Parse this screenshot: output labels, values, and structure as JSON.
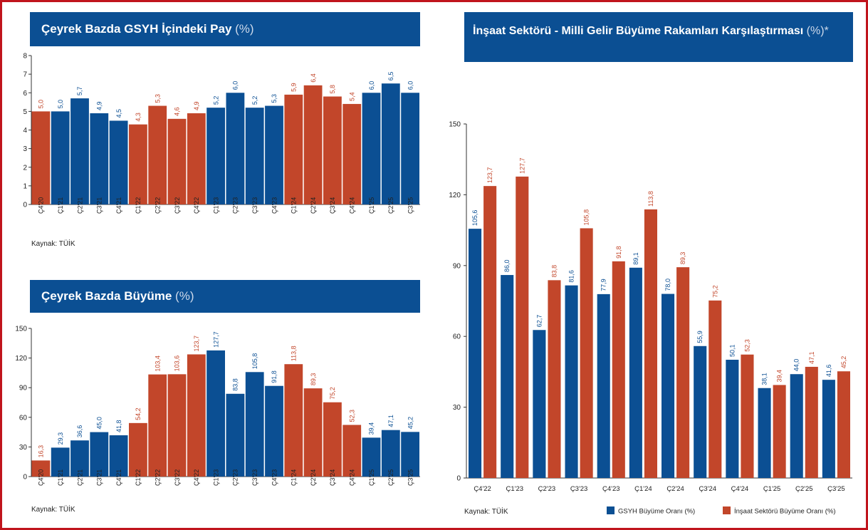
{
  "headers": {
    "chart1_title": "Çeyrek Bazda GSYH İçindeki Pay",
    "chart1_unit": "(%)",
    "chart2_title": "Çeyrek Bazda Büyüme",
    "chart2_unit": "(%)",
    "chart3_title": "İnşaat Sektörü - Milli Gelir Büyüme Rakamları Karşılaştırması",
    "chart3_unit": "(%)*"
  },
  "colors": {
    "blue": "#0b4f93",
    "orange": "#c2462a",
    "red_frame": "#c0141c"
  },
  "chart_data": [
    {
      "id": "share",
      "type": "bar",
      "title": "Çeyrek Bazda GSYH İçindeki Pay",
      "unit": "(%)",
      "source": "Kaynak: TÜİK",
      "ylim": [
        0,
        8
      ],
      "yticks": [
        0,
        1,
        2,
        3,
        4,
        5,
        6,
        7,
        8
      ],
      "categories": [
        "Ç4'20",
        "Ç1'21",
        "Ç2'21",
        "Ç3'21",
        "Ç4'21",
        "Ç1'22",
        "Ç2'22",
        "Ç3'22",
        "Ç4'22",
        "Ç1'23",
        "Ç2'23",
        "Ç3'23",
        "Ç4'23",
        "Ç1'24",
        "Ç2'24",
        "Ç3'24",
        "Ç4'24",
        "Ç1'25",
        "Ç2'25",
        "Ç3'25"
      ],
      "values": [
        5.0,
        5.0,
        5.7,
        4.9,
        4.5,
        4.3,
        5.3,
        4.6,
        4.9,
        5.2,
        6.0,
        5.2,
        5.3,
        5.9,
        6.4,
        5.8,
        5.4,
        6.0,
        6.5,
        6.0
      ],
      "labels": [
        "5,0",
        "5,0",
        "5,7",
        "4,9",
        "4,5",
        "4,3",
        "5,3",
        "4,6",
        "4,9",
        "5,2",
        "6,0",
        "5,2",
        "5,3",
        "5,9",
        "6,4",
        "5,8",
        "5,4",
        "6,0",
        "6,5",
        "6,0"
      ],
      "colors": [
        "orange",
        "blue",
        "blue",
        "blue",
        "blue",
        "orange",
        "orange",
        "orange",
        "orange",
        "blue",
        "blue",
        "blue",
        "blue",
        "orange",
        "orange",
        "orange",
        "orange",
        "blue",
        "blue",
        "blue"
      ]
    },
    {
      "id": "growth",
      "type": "bar",
      "title": "Çeyrek Bazda Büyüme",
      "unit": "(%)",
      "source": "Kaynak: TÜİK",
      "ylim": [
        0,
        150
      ],
      "yticks": [
        0,
        30,
        60,
        90,
        120,
        150
      ],
      "categories": [
        "Ç4'20",
        "Ç1'21",
        "Ç2'21",
        "Ç3'21",
        "Ç4'21",
        "Ç1'22",
        "Ç2'22",
        "Ç3'22",
        "Ç4'22",
        "Ç1'23",
        "Ç2'23",
        "Ç3'23",
        "Ç4'23",
        "Ç1'24",
        "Ç2'24",
        "Ç3'24",
        "Ç4'24",
        "Ç1'25",
        "Ç2'25",
        "Ç3'25"
      ],
      "values": [
        16.3,
        29.3,
        36.6,
        45.0,
        41.8,
        54.2,
        103.4,
        103.6,
        123.7,
        127.7,
        83.8,
        105.8,
        91.8,
        113.8,
        89.3,
        75.2,
        52.3,
        39.4,
        47.1,
        45.2
      ],
      "labels": [
        "16,3",
        "29,3",
        "36,6",
        "45,0",
        "41,8",
        "54,2",
        "103,4",
        "103,6",
        "123,7",
        "127,7",
        "83,8",
        "105,8",
        "91,8",
        "113,8",
        "89,3",
        "75,2",
        "52,3",
        "39,4",
        "47,1",
        "45,2"
      ],
      "colors": [
        "orange",
        "blue",
        "blue",
        "blue",
        "blue",
        "orange",
        "orange",
        "orange",
        "orange",
        "blue",
        "blue",
        "blue",
        "blue",
        "orange",
        "orange",
        "orange",
        "orange",
        "blue",
        "blue",
        "blue"
      ]
    },
    {
      "id": "comparison",
      "type": "bar",
      "title": "İnşaat Sektörü - Milli Gelir Büyüme Rakamları Karşılaştırması",
      "unit": "(%)*",
      "source": "Kaynak: TÜİK",
      "ylim": [
        0,
        150
      ],
      "yticks": [
        0,
        30,
        60,
        90,
        120,
        150
      ],
      "categories": [
        "Ç4'22",
        "Ç1'23",
        "Ç2'23",
        "Ç3'23",
        "Ç4'23",
        "Ç1'24",
        "Ç2'24",
        "Ç3'24",
        "Ç4'24",
        "Ç1'25",
        "Ç2'25",
        "Ç3'25"
      ],
      "series": [
        {
          "name": "GSYH Büyüme Oranı (%)",
          "color": "blue",
          "values": [
            105.6,
            86.0,
            62.7,
            81.6,
            77.9,
            89.1,
            78.0,
            55.9,
            50.1,
            38.1,
            44.0,
            41.6
          ],
          "labels": [
            "105,6",
            "86,0",
            "62,7",
            "81,6",
            "77,9",
            "89,1",
            "78,0",
            "55,9",
            "50,1",
            "38,1",
            "44,0",
            "41,6"
          ]
        },
        {
          "name": "İnşaat Sektörü Büyüme Oranı (%)",
          "color": "orange",
          "values": [
            123.7,
            127.7,
            83.8,
            105.8,
            91.8,
            113.8,
            89.3,
            75.2,
            52.3,
            39.4,
            47.1,
            45.2
          ],
          "labels": [
            "123,7",
            "127,7",
            "83,8",
            "105,8",
            "91,8",
            "113,8",
            "89,3",
            "75,2",
            "52,3",
            "39,4",
            "47,1",
            "45,2"
          ]
        }
      ]
    }
  ]
}
